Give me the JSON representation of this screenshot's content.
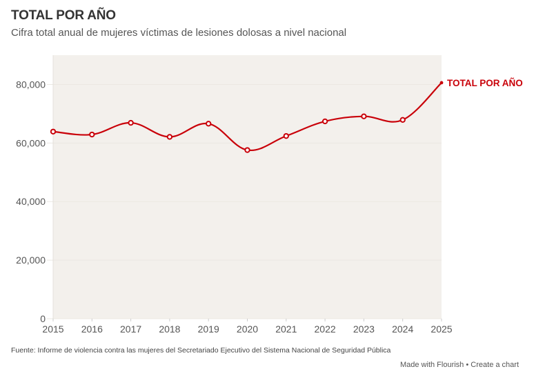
{
  "header": {
    "title": "TOTAL POR AÑO",
    "subtitle": "Cifra total anual de mujeres víctimas de lesiones dolosas a nivel nacional"
  },
  "footer": {
    "source": "Fuente: Informe de violencia contra las mujeres del Secretariado Ejecutivo del Sistema Nacional de Seguridad Pública",
    "made_with": "Made with Flourish",
    "separator": "•",
    "create_chart": "Create a chart"
  },
  "colors": {
    "series": "#c90009",
    "plot_background": "#f3f0ec",
    "gridline": "#ebe7e2"
  },
  "chart_data": {
    "type": "line",
    "title": "TOTAL POR AÑO",
    "subtitle": "Cifra total anual de mujeres víctimas de lesiones dolosas a nivel nacional",
    "xlabel": "",
    "ylabel": "",
    "x": [
      2015,
      2016,
      2017,
      2018,
      2019,
      2020,
      2021,
      2022,
      2023,
      2024,
      2025
    ],
    "x_tick_labels": [
      "2015",
      "2016",
      "2017",
      "2018",
      "2019",
      "2020",
      "2021",
      "2022",
      "2023",
      "2024",
      "2025"
    ],
    "y_ticks": [
      0,
      20000,
      40000,
      60000,
      80000
    ],
    "y_tick_labels": [
      "0",
      "20,000",
      "40,000",
      "60,000",
      "80,000"
    ],
    "ylim": [
      0,
      90000
    ],
    "xlim": [
      2015,
      2025
    ],
    "grid": true,
    "series": [
      {
        "name": "TOTAL POR AÑO",
        "values": [
          63900,
          62900,
          66900,
          62100,
          66600,
          57600,
          62400,
          67400,
          69100,
          67900,
          80600
        ],
        "label_position": "end"
      }
    ]
  }
}
